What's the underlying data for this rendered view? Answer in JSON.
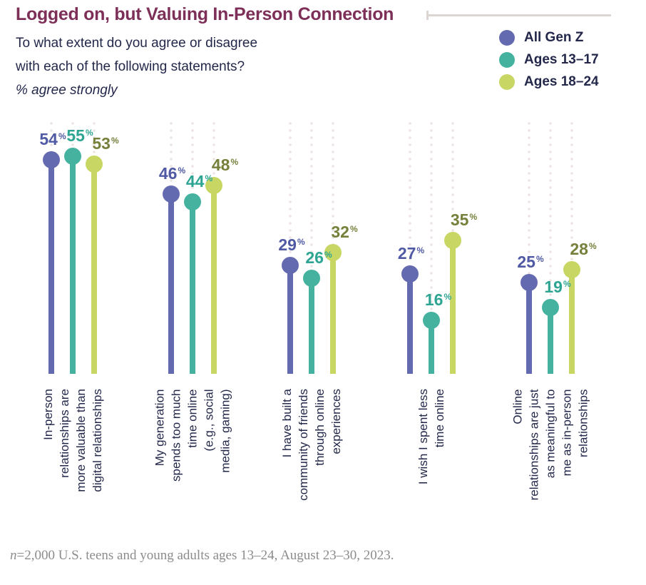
{
  "header": {
    "title": "Logged on, but Valuing In-Person Connection",
    "subtitle_line1": "To what extent do you agree or disagree",
    "subtitle_line2": "with each of the following statements?",
    "note": "% agree strongly"
  },
  "legend": {
    "items": [
      {
        "label": "All Gen Z",
        "color": "#646ab0"
      },
      {
        "label": "Ages 13–17",
        "color": "#45b2a0"
      },
      {
        "label": "Ages 18–24",
        "color": "#c8d763"
      }
    ]
  },
  "chart_data": {
    "type": "lollipop",
    "unit": "%",
    "title": "Logged on, but Valuing In-Person Connection",
    "subtitle": "To what extent do you agree or disagree with each of the following statements? % agree strongly",
    "ylim": [
      0,
      60
    ],
    "grid": "dotted-vertical-columns",
    "legend_position": "top-right",
    "categories": [
      {
        "label": "In-person relationships are more valuable than digital relationships",
        "lines": [
          "In-person",
          "relationships are",
          "more valuable than",
          "digital relationships"
        ]
      },
      {
        "label": "My generation spends too much time online (e.g., social media, gaming)",
        "lines": [
          "My generation",
          "spends too much",
          "time online",
          "(e.g., social",
          "media, gaming)"
        ]
      },
      {
        "label": "I have built a community of friends through online experiences",
        "lines": [
          "I have built a",
          "community of friends",
          "through online",
          "experiences"
        ]
      },
      {
        "label": "I wish I spent less time online",
        "lines": [
          "I wish I spent less",
          "time online"
        ]
      },
      {
        "label": "Online relationships are just as meaningful to me as in-person relationships",
        "lines": [
          "Online",
          "relationships are just",
          "as meaningful to",
          "me as in-person",
          "relationships"
        ]
      }
    ],
    "series": [
      {
        "name": "All Gen Z",
        "color": "#646ab0",
        "label_color": "#4f59a4",
        "values": [
          54,
          46,
          29,
          27,
          25
        ]
      },
      {
        "name": "Ages 13–17",
        "color": "#45b2a0",
        "label_color": "#2ea493",
        "values": [
          55,
          44,
          26,
          16,
          19
        ]
      },
      {
        "name": "Ages 18–24",
        "color": "#c8d763",
        "label_color": "#76803a",
        "values": [
          53,
          48,
          32,
          35,
          28
        ]
      }
    ]
  },
  "footer": {
    "n_italic": "n",
    "text": "=2,000 U.S. teens and young adults ages 13–24, August 23–30, 2023."
  }
}
